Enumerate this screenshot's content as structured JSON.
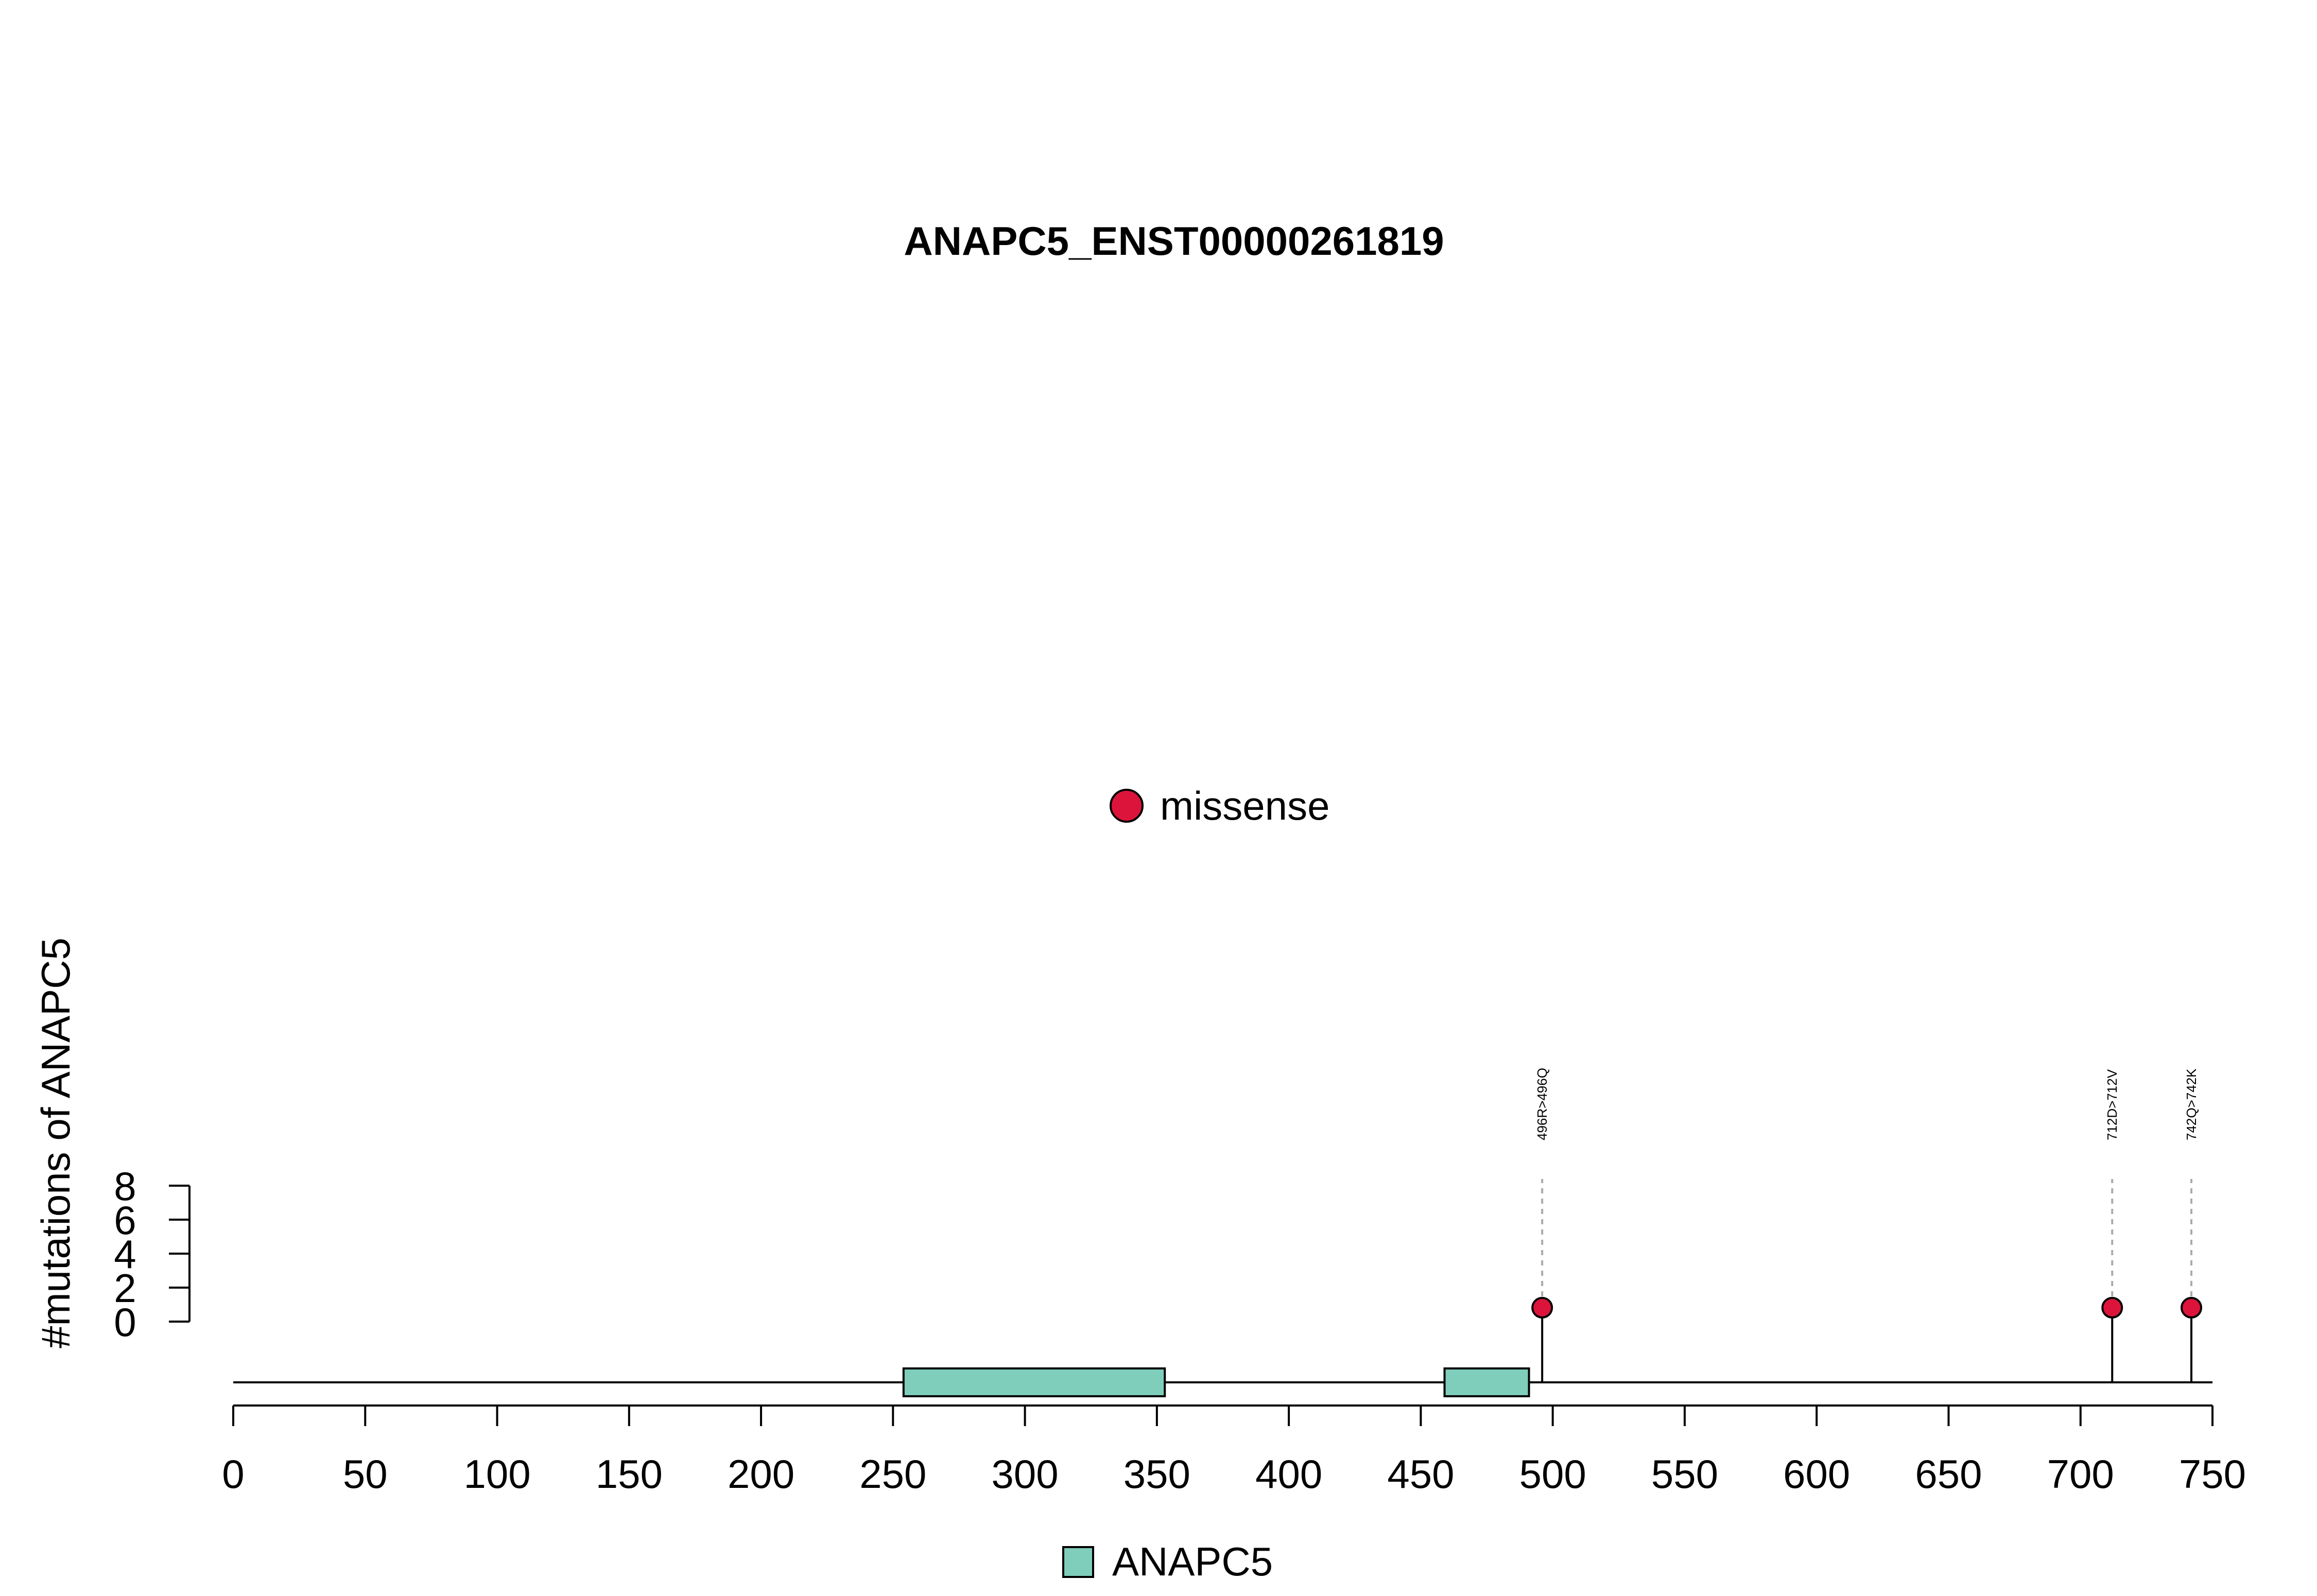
{
  "chart_data": {
    "type": "lollipop",
    "title": "ANAPC5_ENST00000261819",
    "ylabel": "#mutations of ANAPC5",
    "xlabel": "",
    "xlim": [
      0,
      750
    ],
    "x_ticks": [
      0,
      50,
      100,
      150,
      200,
      250,
      300,
      350,
      400,
      450,
      500,
      550,
      600,
      650,
      700,
      750
    ],
    "ylim": [
      0,
      8
    ],
    "y_ticks": [
      0,
      2,
      4,
      6,
      8
    ],
    "protein_length": 750,
    "domains": [
      {
        "name": "ANAPC5",
        "start": 254,
        "end": 353,
        "color": "#7FCDBB"
      },
      {
        "name": "ANAPC5",
        "start": 459,
        "end": 491,
        "color": "#7FCDBB"
      }
    ],
    "mutations": [
      {
        "position": 496,
        "label": "496R>496Q",
        "type": "missense",
        "count": 1
      },
      {
        "position": 712,
        "label": "712D>712V",
        "type": "missense",
        "count": 1
      },
      {
        "position": 742,
        "label": "742Q>742K",
        "type": "missense",
        "count": 1
      }
    ],
    "legend_types": [
      {
        "label": "missense",
        "color": "#DC143C"
      }
    ],
    "legend_domains": [
      {
        "label": "ANAPC5",
        "color": "#7FCDBB"
      }
    ]
  }
}
